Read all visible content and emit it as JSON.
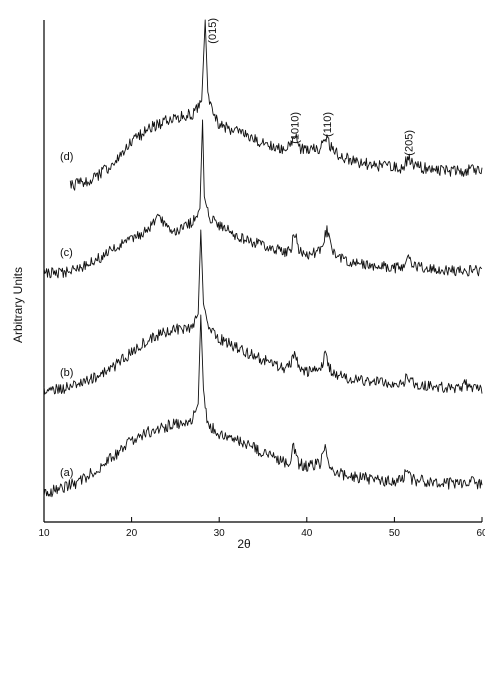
{
  "chart_data": {
    "type": "line",
    "xlabel": "2θ",
    "ylabel": "Arbitrary Units",
    "xlim": [
      10,
      60
    ],
    "x_ticks": [
      10,
      20,
      30,
      40,
      50,
      60
    ],
    "grid": false,
    "series": [
      {
        "name": "(d)",
        "x": [
          13,
          15,
          18,
          20,
          22,
          24,
          26,
          27,
          28,
          28.4,
          28.7,
          29.2,
          30,
          32,
          34,
          36,
          37.5,
          38.2,
          38.6,
          39.1,
          40,
          41.5,
          42.2,
          42.9,
          44,
          46,
          48,
          50,
          51,
          51.6,
          52.2,
          54,
          56,
          58,
          59,
          60
        ],
        "y": [
          8,
          10,
          20,
          32,
          40,
          44,
          47,
          48,
          55,
          100,
          60,
          50,
          42,
          38,
          34,
          30,
          28,
          30,
          37,
          29,
          27,
          29,
          35,
          28,
          24,
          21,
          19,
          18,
          18,
          24,
          19,
          17,
          16,
          16,
          17,
          16
        ]
      },
      {
        "name": "(c)",
        "x": [
          10,
          12,
          14,
          16,
          18,
          20,
          22,
          23,
          24,
          25,
          26,
          27,
          27.8,
          28.1,
          28.3,
          28.6,
          29,
          30,
          32,
          34,
          36,
          37.5,
          38.2,
          38.6,
          39.1,
          40,
          41.5,
          42.3,
          43,
          44,
          46,
          48,
          50,
          51,
          51.6,
          52.2,
          54,
          56,
          58,
          59,
          60
        ],
        "y": [
          10,
          10,
          13,
          18,
          24,
          30,
          36,
          42,
          38,
          35,
          37,
          40,
          48,
          100,
          55,
          48,
          42,
          38,
          32,
          28,
          25,
          22,
          25,
          34,
          24,
          21,
          23,
          35,
          22,
          18,
          16,
          14,
          13,
          14,
          19,
          14,
          12,
          12,
          11,
          12,
          10
        ]
      },
      {
        "name": "(b)",
        "x": [
          10,
          12,
          14,
          16,
          18,
          20,
          22,
          24,
          26,
          27,
          27.6,
          27.9,
          28.2,
          28.6,
          29,
          30,
          32,
          34,
          36,
          37.5,
          38.2,
          38.6,
          39.1,
          40,
          41.5,
          42.1,
          42.8,
          44,
          46,
          48,
          50,
          51,
          51.5,
          52.2,
          54,
          56,
          57.5,
          58,
          59,
          60
        ],
        "y": [
          8,
          9,
          12,
          16,
          22,
          30,
          38,
          42,
          44,
          45,
          52,
          100,
          58,
          48,
          42,
          38,
          33,
          28,
          24,
          20,
          24,
          30,
          22,
          19,
          21,
          28,
          19,
          16,
          14,
          13,
          12,
          13,
          17,
          12,
          11,
          10,
          9,
          12,
          9,
          8
        ]
      },
      {
        "name": "(a)",
        "x": [
          10,
          12,
          14,
          16,
          18,
          20,
          22,
          24,
          26,
          27,
          27.6,
          27.9,
          28.2,
          28.6,
          29,
          30,
          32,
          34,
          36,
          37.5,
          38.2,
          38.5,
          39,
          40,
          41.5,
          42.1,
          42.7,
          44,
          46,
          48,
          50,
          51,
          51.4,
          52,
          54,
          56,
          58,
          59,
          60
        ],
        "y": [
          4,
          6,
          10,
          16,
          24,
          32,
          37,
          40,
          42,
          44,
          52,
          100,
          60,
          44,
          40,
          36,
          32,
          28,
          24,
          20,
          22,
          30,
          20,
          18,
          20,
          28,
          18,
          14,
          12,
          11,
          10,
          11,
          16,
          11,
          10,
          9,
          9,
          10,
          8
        ]
      }
    ],
    "annotations": [
      {
        "text": "(015)",
        "x": 29.2
      },
      {
        "text": "(1010)",
        "x": 38.6
      },
      {
        "text": "(110)",
        "x": 42.3
      },
      {
        "text": "(205)",
        "x": 51.6
      }
    ]
  }
}
